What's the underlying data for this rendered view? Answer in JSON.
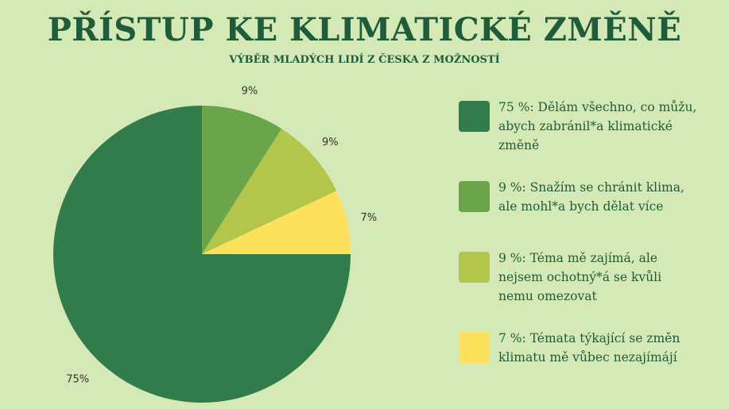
{
  "header": {
    "title": "PŘÍSTUP KE KLIMATICKÉ ZMĚNĚ",
    "subtitle": "VÝBĚR MLADÝCH LIDÍ Z ČESKA Z MOŽNOSTÍ"
  },
  "colors": {
    "background": "#d4e9b5",
    "text": "#1f5c3a",
    "slice_1": "#317c4a",
    "slice_2": "#6aa44b",
    "slice_3": "#b4c54c",
    "slice_4": "#fde05c"
  },
  "chart_data": {
    "type": "pie",
    "title": "PŘÍSTUP KE KLIMATICKÉ ZMĚNĚ",
    "subtitle": "VÝBĚR MLADÝCH LIDÍ Z ČESKA Z MOŽNOSTÍ",
    "legend_position": "right",
    "slices": [
      {
        "label": "75 %: Dělám všechno, co můžu, abych zabránil*a klimatické změně",
        "value": 75,
        "data_label": "75%",
        "color": "#317c4a"
      },
      {
        "label": "9 %: Snažím se chránit klima, ale mohl*a bych dělat více",
        "value": 9,
        "data_label": "9%",
        "color": "#6aa44b"
      },
      {
        "label": "9 %: Téma mě zajímá, ale nejsem ochotný*á se kvůli nemu omezovat",
        "value": 9,
        "data_label": "9%",
        "color": "#b4c54c"
      },
      {
        "label": "7 %: Témata týkající se změn klimatu mě vůbec nezajímájí",
        "value": 7,
        "data_label": "7%",
        "color": "#fde05c"
      }
    ]
  }
}
